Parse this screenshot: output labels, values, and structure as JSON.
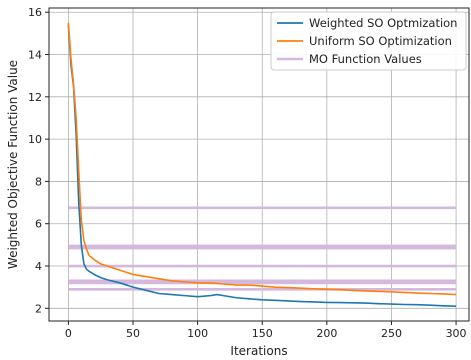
{
  "chart_data": {
    "type": "line",
    "xlabel": "Iterations",
    "ylabel": "Weighted Objective Function Value",
    "xlim": [
      -15,
      310
    ],
    "ylim": [
      1.4,
      16.2
    ],
    "xticks": [
      0,
      50,
      100,
      150,
      200,
      250,
      300
    ],
    "yticks": [
      2,
      4,
      6,
      8,
      10,
      12,
      14,
      16
    ],
    "grid": true,
    "legend_position": "top-right",
    "series": [
      {
        "name": "Weighted SO Optmization",
        "color": "#1f77b4",
        "x": [
          0,
          2,
          4,
          6,
          8,
          10,
          12,
          14,
          16,
          20,
          25,
          30,
          40,
          50,
          60,
          70,
          80,
          90,
          100,
          110,
          115,
          120,
          130,
          140,
          150,
          160,
          170,
          180,
          190,
          200,
          210,
          220,
          230,
          240,
          250,
          260,
          270,
          280,
          290,
          300
        ],
        "y": [
          15.4,
          13.5,
          12.5,
          10.2,
          7.0,
          5.0,
          4.1,
          3.85,
          3.75,
          3.6,
          3.45,
          3.35,
          3.2,
          3.0,
          2.85,
          2.7,
          2.65,
          2.6,
          2.55,
          2.6,
          2.65,
          2.6,
          2.5,
          2.45,
          2.4,
          2.38,
          2.35,
          2.32,
          2.3,
          2.28,
          2.27,
          2.26,
          2.25,
          2.22,
          2.2,
          2.18,
          2.17,
          2.15,
          2.12,
          2.1
        ]
      },
      {
        "name": "Uniform SO Optimization",
        "color": "#ff7f0e",
        "x": [
          0,
          2,
          4,
          6,
          8,
          10,
          12,
          14,
          16,
          20,
          25,
          30,
          40,
          50,
          60,
          70,
          80,
          90,
          100,
          110,
          120,
          130,
          140,
          150,
          160,
          170,
          180,
          190,
          200,
          210,
          220,
          230,
          240,
          250,
          260,
          270,
          280,
          290,
          300
        ],
        "y": [
          15.5,
          13.8,
          12.6,
          11.0,
          8.5,
          6.2,
          5.2,
          4.8,
          4.5,
          4.3,
          4.1,
          4.0,
          3.8,
          3.6,
          3.5,
          3.4,
          3.3,
          3.25,
          3.2,
          3.2,
          3.15,
          3.1,
          3.1,
          3.05,
          3.0,
          2.98,
          2.95,
          2.92,
          2.9,
          2.88,
          2.85,
          2.82,
          2.8,
          2.78,
          2.75,
          2.72,
          2.7,
          2.68,
          2.65
        ]
      }
    ],
    "reference_lines": {
      "name": "MO Function Values",
      "color": "#d4b8de",
      "x_range": [
        0,
        300
      ],
      "y_values": [
        6.75,
        4.95,
        4.85,
        4.0,
        3.3,
        3.2,
        2.9
      ]
    }
  }
}
